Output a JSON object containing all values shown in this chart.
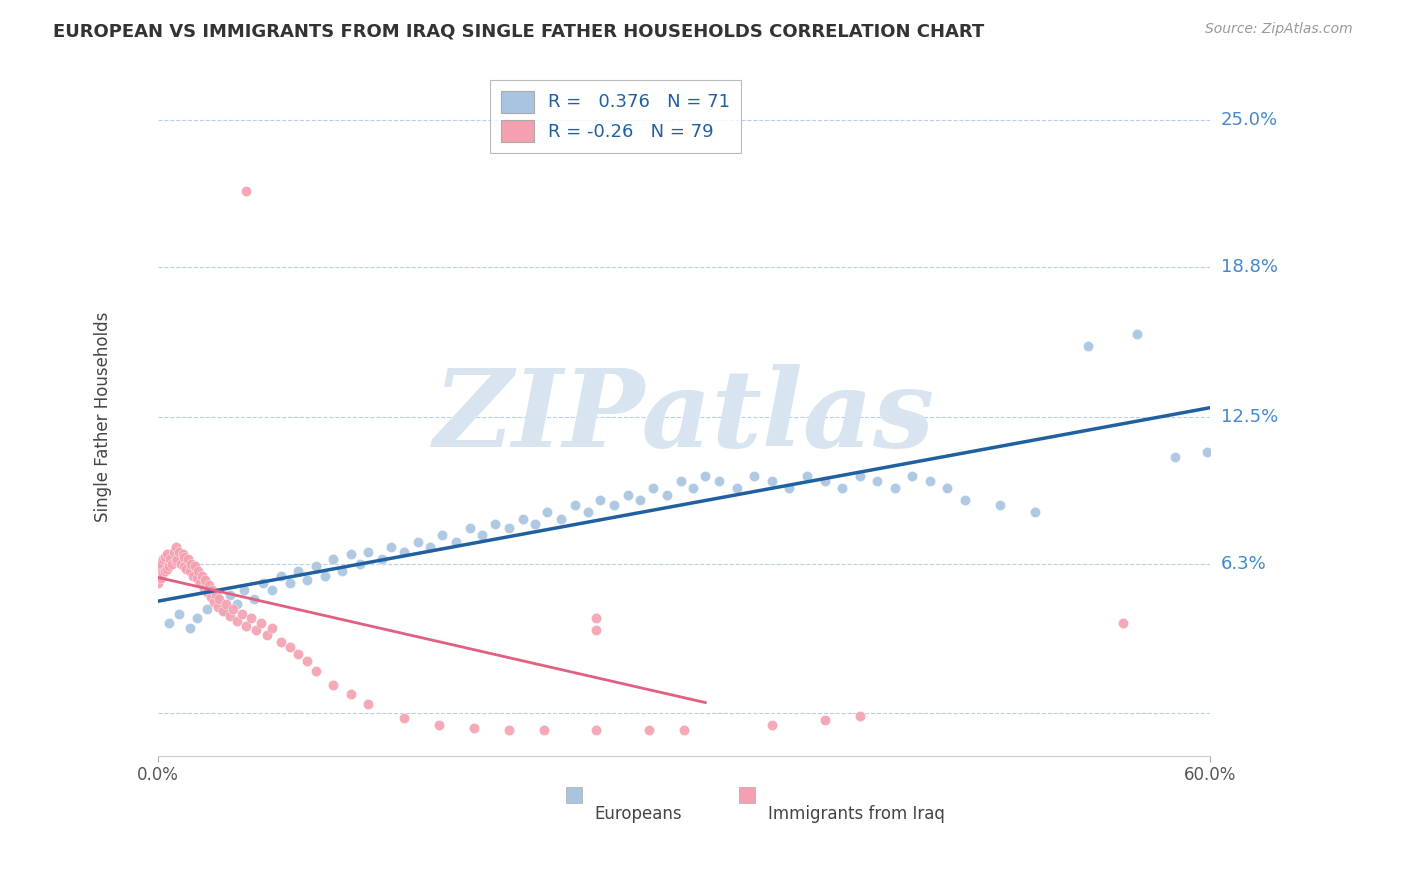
{
  "title": "EUROPEAN VS IMMIGRANTS FROM IRAQ SINGLE FATHER HOUSEHOLDS CORRELATION CHART",
  "source": "Source: ZipAtlas.com",
  "ylabel": "Single Father Households",
  "yticks": [
    0.0,
    0.063,
    0.125,
    0.188,
    0.25
  ],
  "ytick_labels": [
    "",
    "6.3%",
    "12.5%",
    "18.8%",
    "25.0%"
  ],
  "xmin": 0.0,
  "xmax": 0.6,
  "ymin": -0.018,
  "ymax": 0.268,
  "europeans_R": 0.376,
  "europeans_N": 71,
  "immigrants_R": -0.26,
  "immigrants_N": 79,
  "blue_color": "#a8c4e0",
  "pink_color": "#f4a0b0",
  "blue_line_color": "#2060a0",
  "pink_line_color": "#e06080",
  "watermark_color": "#d8e4f0",
  "background_color": "#ffffff",
  "eu_x": [
    0.006,
    0.012,
    0.018,
    0.022,
    0.028,
    0.033,
    0.038,
    0.041,
    0.045,
    0.049,
    0.055,
    0.06,
    0.065,
    0.07,
    0.075,
    0.08,
    0.085,
    0.09,
    0.095,
    0.1,
    0.105,
    0.11,
    0.115,
    0.12,
    0.128,
    0.133,
    0.14,
    0.148,
    0.155,
    0.162,
    0.17,
    0.178,
    0.185,
    0.192,
    0.2,
    0.208,
    0.215,
    0.222,
    0.23,
    0.238,
    0.245,
    0.252,
    0.26,
    0.268,
    0.275,
    0.282,
    0.29,
    0.298,
    0.305,
    0.312,
    0.32,
    0.33,
    0.34,
    0.35,
    0.36,
    0.37,
    0.38,
    0.39,
    0.4,
    0.41,
    0.42,
    0.43,
    0.44,
    0.45,
    0.46,
    0.48,
    0.5,
    0.53,
    0.558,
    0.58,
    0.598
  ],
  "eu_y": [
    0.038,
    0.042,
    0.036,
    0.04,
    0.044,
    0.048,
    0.043,
    0.05,
    0.046,
    0.052,
    0.048,
    0.055,
    0.052,
    0.058,
    0.055,
    0.06,
    0.056,
    0.062,
    0.058,
    0.065,
    0.06,
    0.067,
    0.063,
    0.068,
    0.065,
    0.07,
    0.068,
    0.072,
    0.07,
    0.075,
    0.072,
    0.078,
    0.075,
    0.08,
    0.078,
    0.082,
    0.08,
    0.085,
    0.082,
    0.088,
    0.085,
    0.09,
    0.088,
    0.092,
    0.09,
    0.095,
    0.092,
    0.098,
    0.095,
    0.1,
    0.098,
    0.095,
    0.1,
    0.098,
    0.095,
    0.1,
    0.098,
    0.095,
    0.1,
    0.098,
    0.095,
    0.1,
    0.098,
    0.095,
    0.09,
    0.088,
    0.085,
    0.155,
    0.16,
    0.108,
    0.11
  ],
  "im_x": [
    0.0,
    0.0,
    0.001,
    0.001,
    0.002,
    0.002,
    0.003,
    0.003,
    0.004,
    0.004,
    0.005,
    0.005,
    0.006,
    0.007,
    0.008,
    0.009,
    0.01,
    0.01,
    0.011,
    0.012,
    0.013,
    0.014,
    0.015,
    0.015,
    0.016,
    0.017,
    0.018,
    0.019,
    0.02,
    0.021,
    0.022,
    0.023,
    0.024,
    0.025,
    0.026,
    0.027,
    0.028,
    0.029,
    0.03,
    0.031,
    0.032,
    0.033,
    0.034,
    0.035,
    0.037,
    0.039,
    0.041,
    0.043,
    0.045,
    0.048,
    0.05,
    0.053,
    0.056,
    0.059,
    0.062,
    0.065,
    0.07,
    0.075,
    0.08,
    0.085,
    0.09,
    0.1,
    0.11,
    0.12,
    0.14,
    0.16,
    0.18,
    0.2,
    0.22,
    0.25,
    0.28,
    0.3,
    0.35,
    0.38,
    0.4,
    0.25,
    0.25,
    0.55,
    0.05
  ],
  "im_y": [
    0.055,
    0.06,
    0.058,
    0.062,
    0.057,
    0.063,
    0.059,
    0.065,
    0.06,
    0.066,
    0.061,
    0.067,
    0.062,
    0.065,
    0.063,
    0.068,
    0.064,
    0.07,
    0.065,
    0.068,
    0.063,
    0.067,
    0.062,
    0.066,
    0.061,
    0.065,
    0.06,
    0.063,
    0.058,
    0.062,
    0.057,
    0.06,
    0.055,
    0.058,
    0.053,
    0.056,
    0.051,
    0.054,
    0.049,
    0.052,
    0.047,
    0.05,
    0.045,
    0.048,
    0.043,
    0.046,
    0.041,
    0.044,
    0.039,
    0.042,
    0.037,
    0.04,
    0.035,
    0.038,
    0.033,
    0.036,
    0.03,
    0.028,
    0.025,
    0.022,
    0.018,
    0.012,
    0.008,
    0.004,
    -0.002,
    -0.005,
    -0.006,
    -0.007,
    -0.007,
    -0.007,
    -0.007,
    -0.007,
    -0.005,
    -0.003,
    -0.001,
    0.04,
    0.035,
    0.038,
    0.22
  ]
}
